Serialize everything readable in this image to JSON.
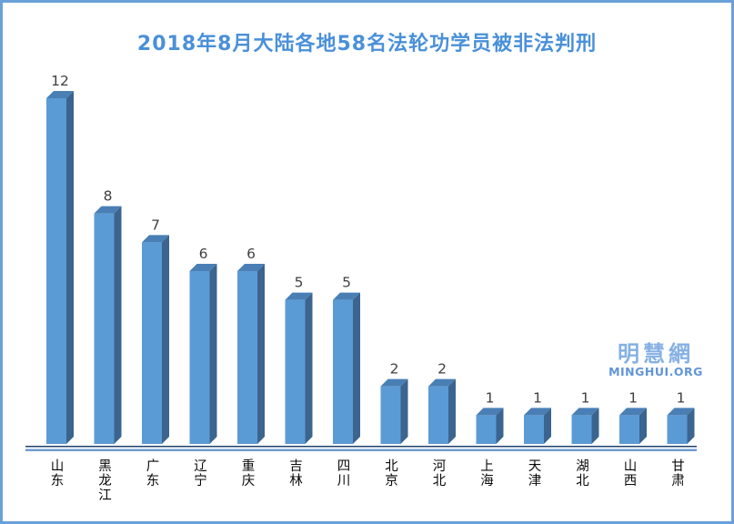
{
  "chart_data": {
    "type": "bar",
    "style": "3d-column",
    "title": "2018年8月大陆各地58名法轮功学员被非法判刑",
    "categories": [
      "山东",
      "黑龙江",
      "广东",
      "辽宁",
      "重庆",
      "吉林",
      "四川",
      "北京",
      "河北",
      "上海",
      "天津",
      "湖北",
      "山西",
      "甘肃"
    ],
    "values": [
      12,
      8,
      7,
      6,
      6,
      5,
      5,
      2,
      2,
      1,
      1,
      1,
      1,
      1
    ],
    "total": 58,
    "xlabel": "",
    "ylabel": "",
    "ylim": [
      0,
      12
    ],
    "grid": false,
    "legend_position": "none",
    "value_labels_shown": true,
    "colors": {
      "bar_front": "#5b9bd5",
      "bar_side": "#3b648f",
      "bar_top": "#4a7fb5",
      "value_label": "#404040",
      "category_label": "#0a0a0a",
      "axis_line_dark": "#1f4068",
      "axis_line_light": "#6f9bd1",
      "title": "#4a90d9",
      "frame_border": "#6aa0d8"
    }
  },
  "watermark": {
    "line1": "明慧網",
    "line2": "MINGHUI.ORG"
  }
}
